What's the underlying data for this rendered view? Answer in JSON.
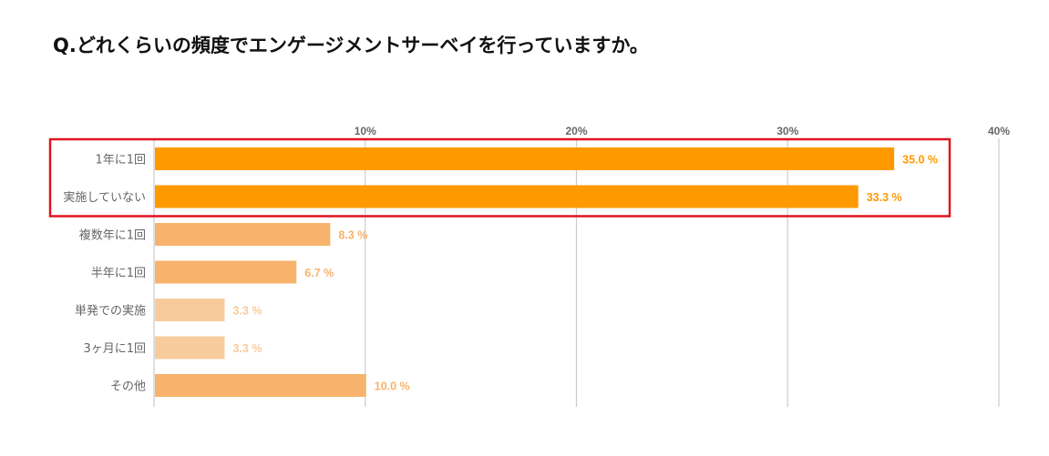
{
  "title": "Q.どれくらいの頻度でエンゲージメントサーベイを行っていますか。",
  "chart_data": {
    "type": "bar",
    "orientation": "horizontal",
    "categories": [
      "1年に1回",
      "実施していない",
      "複数年に1回",
      "半年に1回",
      "単発での実施",
      "3ヶ月に1回",
      "その他"
    ],
    "values": [
      35.0,
      33.3,
      8.3,
      6.7,
      3.3,
      3.3,
      10.0
    ],
    "value_labels": [
      "35.0 %",
      "33.3 %",
      "8.3 %",
      "6.7 %",
      "3.3 %",
      "3.3 %",
      "10.0 %"
    ],
    "bar_colors": [
      "#ff9900",
      "#ff9900",
      "#f7b36b",
      "#f7b36b",
      "#f8cb9c",
      "#f8cb9c",
      "#f7b36b"
    ],
    "xlim": [
      0,
      40
    ],
    "xticks": [
      10,
      20,
      30,
      40
    ],
    "xtick_labels": [
      "10%",
      "20%",
      "30%",
      "40%"
    ],
    "grid": true,
    "highlighted_categories": [
      "1年に1回",
      "実施していない"
    ],
    "highlight_color": "#e0141e"
  }
}
